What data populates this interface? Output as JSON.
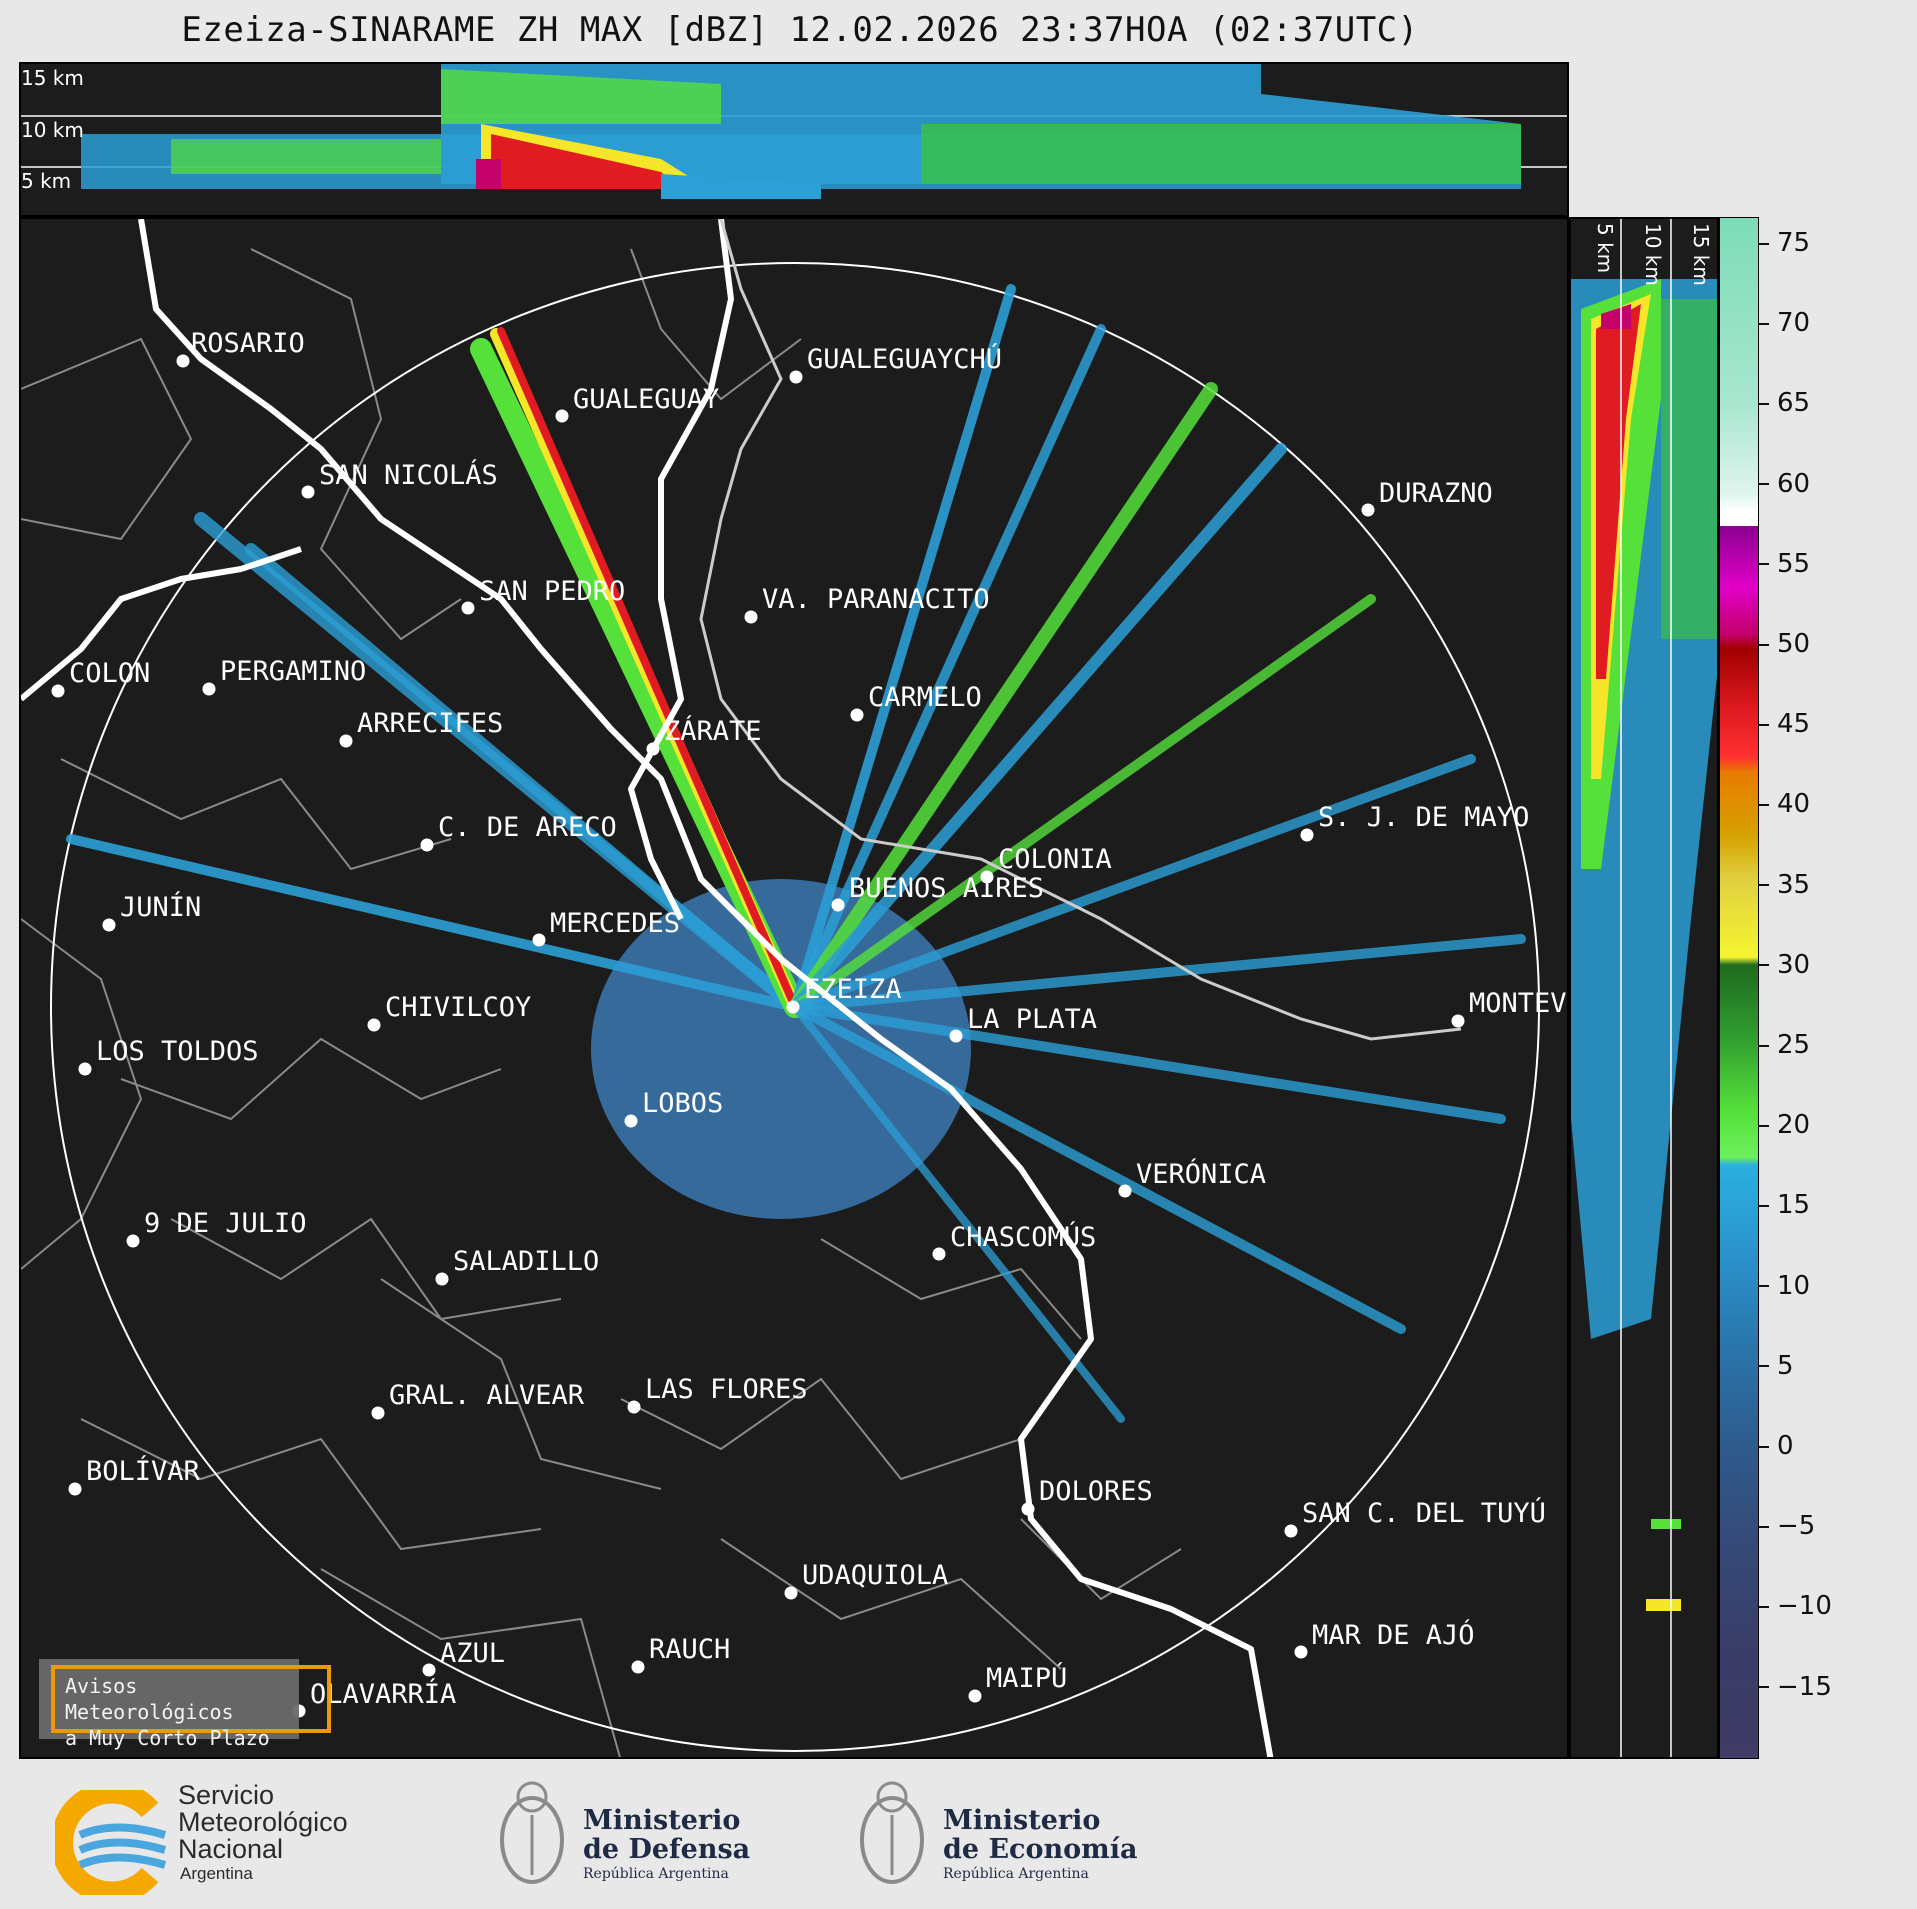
{
  "title": "Ezeiza-SINARAME ZH MAX [dBZ] 12.02.2026 23:37HOA (02:37UTC)",
  "altitude_labels": [
    "15 km",
    "10 km",
    "5 km"
  ],
  "colorbar": {
    "ticks": [
      "75",
      "70",
      "65",
      "60",
      "55",
      "50",
      "45",
      "40",
      "35",
      "30",
      "25",
      "20",
      "15",
      "10",
      "5",
      "0",
      "−5",
      "−10",
      "−15"
    ]
  },
  "cities": [
    {
      "name": "ROSARIO"
    },
    {
      "name": "GUALEGUAYCHÚ"
    },
    {
      "name": "GUALEGUAY"
    },
    {
      "name": "SAN NICOLÁS"
    },
    {
      "name": "DURAZNO"
    },
    {
      "name": "SAN PEDRO"
    },
    {
      "name": "VA. PARANACITO"
    },
    {
      "name": "COLON"
    },
    {
      "name": "PERGAMINO"
    },
    {
      "name": "CARMELO"
    },
    {
      "name": "ARRECIFES"
    },
    {
      "name": "ZÁRATE"
    },
    {
      "name": "S. J. DE MAYO"
    },
    {
      "name": "C. DE ARECO"
    },
    {
      "name": "COLONIA"
    },
    {
      "name": "JUNÍN"
    },
    {
      "name": "BUENOS AIRES"
    },
    {
      "name": "MERCEDES"
    },
    {
      "name": "EZEIZA"
    },
    {
      "name": "MONTEVIDEO"
    },
    {
      "name": "CHIVILCOY"
    },
    {
      "name": "LA PLATA"
    },
    {
      "name": "LOS TOLDOS"
    },
    {
      "name": "LOBOS"
    },
    {
      "name": "VERÓNICA"
    },
    {
      "name": "9 DE JULIO"
    },
    {
      "name": "CHASCOMÚS"
    },
    {
      "name": "SALADILLO"
    },
    {
      "name": "GRAL. ALVEAR"
    },
    {
      "name": "LAS FLORES"
    },
    {
      "name": "BOLÍVAR"
    },
    {
      "name": "DOLORES"
    },
    {
      "name": "SAN C. DEL TUYÚ"
    },
    {
      "name": "UDAQUIOLA"
    },
    {
      "name": "MAR DE AJÓ"
    },
    {
      "name": "AZUL"
    },
    {
      "name": "RAUCH"
    },
    {
      "name": "OLAVARRÍA"
    },
    {
      "name": "MAIPÚ"
    }
  ],
  "warning_box": {
    "line1": "Avisos Meteorológicos",
    "line2": "a Muy Corto Plazo"
  },
  "footer": {
    "smn": {
      "line1": "Servicio",
      "line2": "Meteorológico",
      "line3": "Nacional",
      "line4": "Argentina"
    },
    "defensa": {
      "line1": "Ministerio",
      "line2": "de Defensa",
      "line3": "República Argentina"
    },
    "economia": {
      "line1": "Ministerio",
      "line2": "de Economía",
      "line3": "República Argentina"
    }
  }
}
